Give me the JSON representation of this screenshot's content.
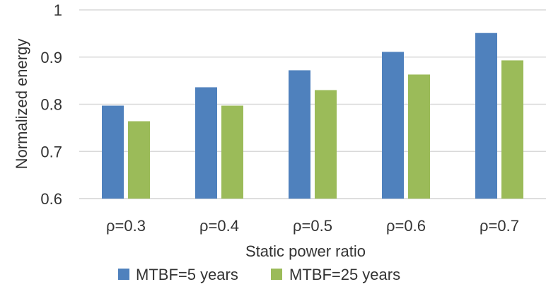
{
  "chart_data": {
    "type": "bar",
    "categories": [
      "ρ=0.3",
      "ρ=0.4",
      "ρ=0.5",
      "ρ=0.6",
      "ρ=0.7"
    ],
    "series": [
      {
        "name": "MTBF=5 years",
        "color": "#4f81bd",
        "values": [
          0.797,
          0.836,
          0.872,
          0.911,
          0.951
        ]
      },
      {
        "name": "MTBF=25 years",
        "color": "#9bbb59",
        "values": [
          0.764,
          0.797,
          0.83,
          0.863,
          0.893
        ]
      }
    ],
    "yticks": [
      "0.6",
      "0.7",
      "0.8",
      "0.9",
      "1"
    ],
    "ylim": [
      0.6,
      1.0
    ],
    "xlabel": "Static power ratio",
    "ylabel": "Normalized energy",
    "grid": true,
    "legend_position": "bottom",
    "gridline_color": "#d9d9d9"
  }
}
